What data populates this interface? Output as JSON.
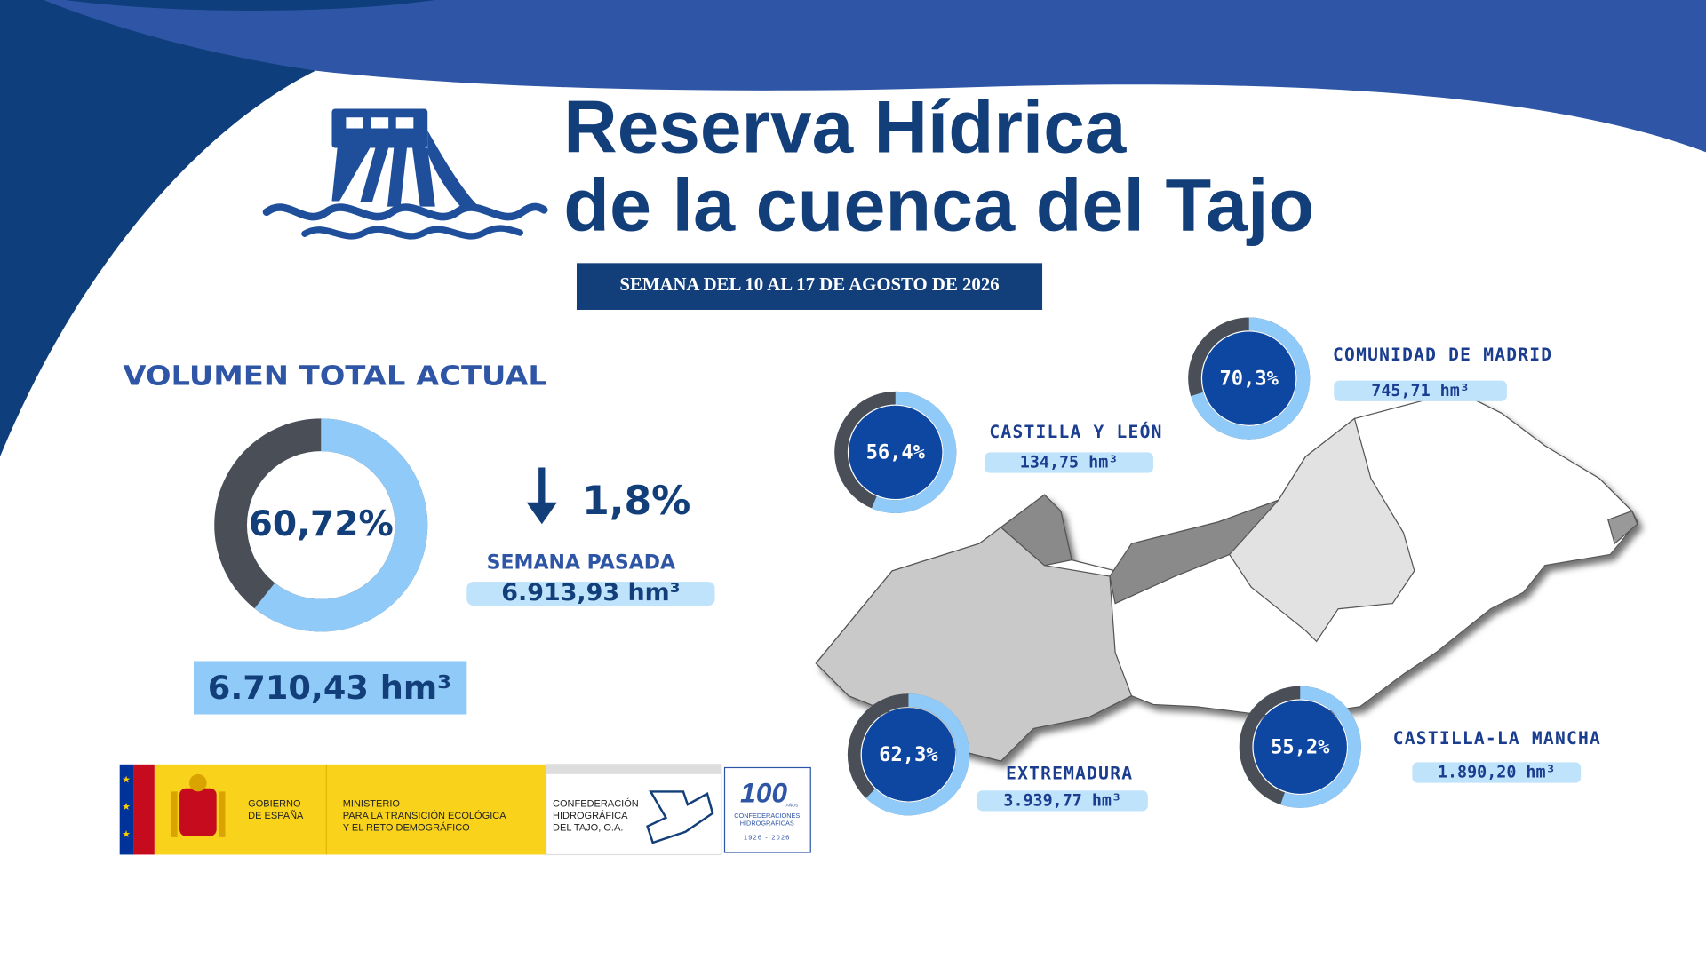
{
  "header": {
    "title_line1": "Reserva Hídrica",
    "title_line2": "de la cuenca del Tajo",
    "week": "SEMANA DEL 10 AL 17 DE AGOSTO DE 2026"
  },
  "total": {
    "heading": "VOLUMEN TOTAL ACTUAL",
    "percent": {
      "value": 60.72,
      "label": "60,72%"
    },
    "volume": "6.710,43 hm³",
    "change": "1,8%",
    "previous_label": "SEMANA PASADA",
    "previous_volume": "6.913,93 hm³"
  },
  "regions": [
    {
      "name": "COMUNIDAD DE MADRID",
      "percent": {
        "value": 70.3,
        "label": "70,3%"
      },
      "volume": "745,71 hm³"
    },
    {
      "name": "CASTILLA Y LEÓN",
      "percent": {
        "value": 56.4,
        "label": "56,4%"
      },
      "volume": "134,75 hm³"
    },
    {
      "name": "EXTREMADURA",
      "percent": {
        "value": 62.3,
        "label": "62,3%"
      },
      "volume": "3.939,77 hm³"
    },
    {
      "name": "CASTILLA-LA MANCHA",
      "percent": {
        "value": 55.2,
        "label": "55,2%"
      },
      "volume": "1.890,20 hm³"
    }
  ],
  "logos": {
    "government": [
      "GOBIERNO",
      "DE ESPAÑA"
    ],
    "ministry": [
      "MINISTERIO",
      "PARA LA TRANSICIÓN ECOLÓGICA",
      "Y EL RETO DEMOGRÁFICO"
    ],
    "confederation": [
      "CONFEDERACIÓN",
      "HIDROGRÁFICA",
      "DEL TAJO, O.A."
    ],
    "anniversary": {
      "number": "100",
      "lines": [
        "AÑOS",
        "CONFEDERACIONES",
        "HIDROGRÁFICAS"
      ],
      "years": "1926 - 2026"
    }
  }
}
